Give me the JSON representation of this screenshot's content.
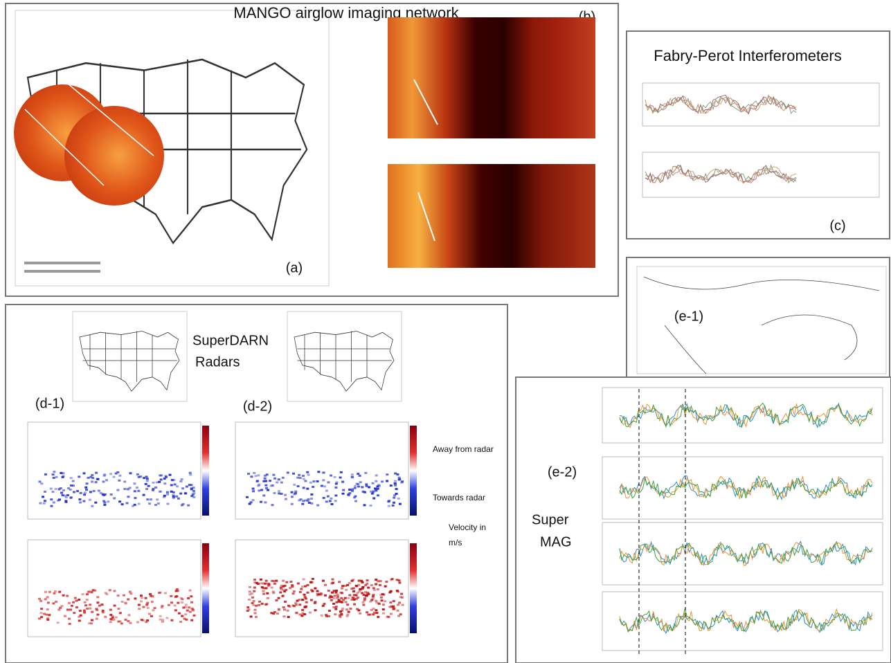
{
  "title": "MANGO airglow imaging network",
  "panels": {
    "a": {
      "label": "(a)"
    },
    "b": {
      "label": "(b)"
    },
    "c": {
      "title": "Fabry-Perot Interferometers",
      "label": "(c)"
    },
    "d": {
      "title": [
        "SuperDARN",
        "Radars"
      ],
      "labels": [
        "(d-1)",
        "(d-2)"
      ],
      "colorbar_notes": [
        "Away from radar",
        "Towards radar"
      ],
      "unit_note": [
        "Velocity in",
        "m/s"
      ]
    },
    "e": {
      "labels": [
        "(e-1)",
        "(e-2)"
      ],
      "title": [
        "Super",
        "MAG"
      ]
    }
  }
}
